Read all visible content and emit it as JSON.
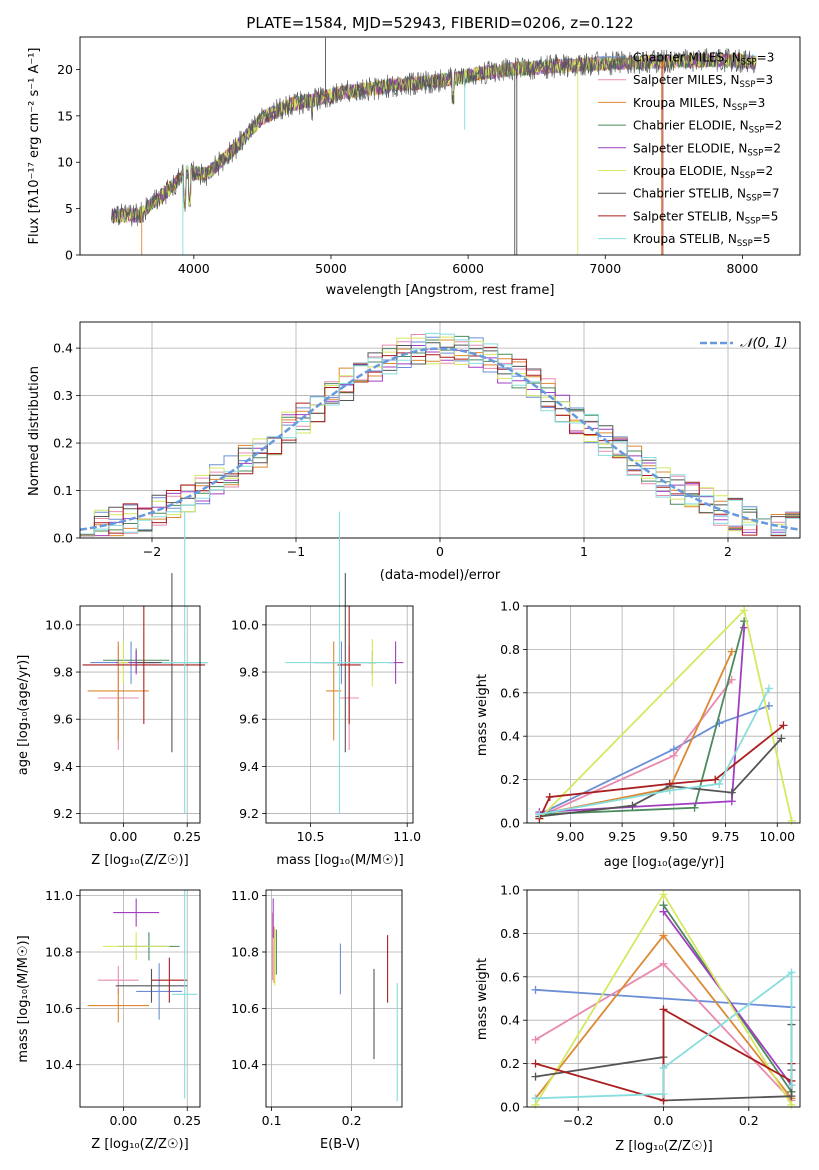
{
  "colors": {
    "chabrier_miles": "#6b8fd6",
    "salpeter_miles": "#e88ab0",
    "kroupa_miles": "#dd8833",
    "chabrier_elodie": "#4c8a5e",
    "salpeter_elodie": "#a040c0",
    "kroupa_elodie": "#d6e860",
    "chabrier_stelib": "#555555",
    "salpeter_stelib": "#aa1f1f",
    "kroupa_stelib": "#88dddd",
    "normal": "#6699dd",
    "grid": "#b0b0b0"
  },
  "chart_data": [
    {
      "type": "line",
      "title": "PLATE=1584, MJD=52943, FIBERID=0206, z=0.122",
      "xlabel": "wavelength [Angstrom, rest frame]",
      "ylabel": "Flux [fλ10⁻¹⁷ erg cm⁻² s⁻¹ A⁻¹]",
      "xlim": [
        3170,
        8420
      ],
      "ylim": [
        0,
        23.5
      ],
      "xticks": [
        "4000",
        "5000",
        "6000",
        "7000",
        "8000"
      ],
      "yticks": [
        "0",
        "5",
        "10",
        "15",
        "20"
      ],
      "grid": false,
      "legend_position": "top-right",
      "legend": [
        "Chabrier MILES, N_SSP=3",
        "Salpeter MILES, N_SSP=3",
        "Kroupa MILES, N_SSP=3",
        "Chabrier ELODIE, N_SSP=2",
        "Salpeter ELODIE, N_SSP=2",
        "Kroupa ELODIE, N_SSP=2",
        "Chabrier STELIB, N_SSP=7",
        "Salpeter STELIB, N_SSP=5",
        "Kroupa STELIB, N_SSP=5"
      ],
      "continuum": {
        "x": [
          3400,
          3600,
          3800,
          3950,
          4100,
          4300,
          4500,
          4700,
          4900,
          5100,
          5300,
          5500,
          5700,
          5900,
          6100,
          6300,
          6500,
          6700,
          6900,
          7100,
          7300,
          7500,
          7700,
          7900,
          8100
        ],
        "y": [
          4.2,
          4.3,
          6.8,
          9.0,
          8.7,
          11.5,
          14.8,
          16.2,
          16.8,
          17.6,
          17.9,
          18.4,
          18.6,
          19.0,
          19.6,
          20.0,
          20.2,
          20.4,
          20.6,
          20.7,
          20.8,
          20.9,
          21.0,
          21.0,
          20.8
        ]
      }
    },
    {
      "type": "bar",
      "xlabel": "(data-model)/error",
      "ylabel": "Normed distribution",
      "xlim": [
        -2.5,
        2.5
      ],
      "ylim": [
        0,
        0.455
      ],
      "xticks": [
        "−2",
        "−1",
        "0",
        "1",
        "2"
      ],
      "yticks": [
        "0.0",
        "0.1",
        "0.2",
        "0.3",
        "0.4"
      ],
      "grid": true,
      "legend": [
        "𝒩(0, 1)"
      ],
      "bin_width": 0.1
    },
    {
      "type": "scatter",
      "xlabel": "Z [log₁₀(Z/Z☉)]",
      "ylabel": "age  [log₁₀(age/yr)]",
      "xlim": [
        -0.17,
        0.3
      ],
      "ylim": [
        9.16,
        10.08
      ],
      "xticks": [
        "0.00",
        "0.25"
      ],
      "yticks": [
        "9.2",
        "9.4",
        "9.6",
        "9.8",
        "10.0"
      ],
      "grid": true,
      "points": [
        {
          "x": 0.03,
          "y": 9.84,
          "xerr": 0.16,
          "yerr": 0.09
        },
        {
          "x": -0.02,
          "y": 9.69,
          "xerr": 0.08,
          "yerr": 0.22
        },
        {
          "x": -0.02,
          "y": 9.72,
          "xerr": 0.12,
          "yerr": 0.21
        },
        {
          "x": 0.05,
          "y": 9.85,
          "xerr": 0.13,
          "yerr": 0.05
        },
        {
          "x": 0.05,
          "y": 9.84,
          "xerr": 0.08,
          "yerr": 0.05
        },
        {
          "x": 0.0,
          "y": 9.84,
          "xerr": 0.02,
          "yerr": 0.09
        },
        {
          "x": 0.19,
          "y": 9.84,
          "xerr": 0.14,
          "yerr": 0.38
        },
        {
          "x": 0.08,
          "y": 9.83,
          "xerr": 0.24,
          "yerr": 0.25
        },
        {
          "x": 0.24,
          "y": 9.84,
          "xerr": 0.09,
          "yerr": 0.64
        }
      ]
    },
    {
      "type": "scatter",
      "xlabel": "mass [log₁₀(M/M☉)]",
      "ylabel": "",
      "xlim": [
        10.27,
        11.03
      ],
      "ylim": [
        9.16,
        10.08
      ],
      "xticks": [
        "10.5",
        "11.0"
      ],
      "yticks": [
        "9.2",
        "9.4",
        "9.6",
        "9.8",
        "10.0"
      ],
      "grid": true,
      "points": [
        {
          "x": 10.66,
          "y": 9.84,
          "xerr": 0.1,
          "yerr": 0.09
        },
        {
          "x": 10.7,
          "y": 9.69,
          "xerr": 0.05,
          "yerr": 0.22
        },
        {
          "x": 10.62,
          "y": 9.72,
          "xerr": 0.04,
          "yerr": 0.21
        },
        {
          "x": 10.82,
          "y": 9.84,
          "xerr": 0.02,
          "yerr": 0.05
        },
        {
          "x": 10.94,
          "y": 9.84,
          "xerr": 0.04,
          "yerr": 0.09
        },
        {
          "x": 10.82,
          "y": 9.84,
          "xerr": 0.02,
          "yerr": 0.1
        },
        {
          "x": 10.68,
          "y": 9.84,
          "xerr": 0.16,
          "yerr": 0.38
        },
        {
          "x": 10.7,
          "y": 9.83,
          "xerr": 0.06,
          "yerr": 0.25
        },
        {
          "x": 10.65,
          "y": 9.84,
          "xerr": 0.28,
          "yerr": 0.64
        }
      ]
    },
    {
      "type": "line",
      "xlabel": "age  [log₁₀(age/yr)]",
      "ylabel": "mass weight",
      "xlim": [
        8.79,
        10.11
      ],
      "ylim": [
        0,
        1.0
      ],
      "xticks": [
        "9.00",
        "9.25",
        "9.50",
        "9.75",
        "10.00"
      ],
      "yticks": [
        "0.0",
        "0.2",
        "0.4",
        "0.6",
        "0.8",
        "1.0"
      ],
      "grid": true,
      "series": [
        {
          "x": [
            8.85,
            9.5,
            9.72,
            9.96
          ],
          "y": [
            0.04,
            0.34,
            0.46,
            0.54
          ]
        },
        {
          "x": [
            8.85,
            9.5,
            9.78
          ],
          "y": [
            0.03,
            0.31,
            0.66
          ]
        },
        {
          "x": [
            8.85,
            9.48,
            9.78
          ],
          "y": [
            0.04,
            0.16,
            0.79
          ]
        },
        {
          "x": [
            8.85,
            9.6,
            9.84
          ],
          "y": [
            0.04,
            0.07,
            0.93
          ]
        },
        {
          "x": [
            8.85,
            9.78,
            9.84
          ],
          "y": [
            0.05,
            0.1,
            0.9
          ]
        },
        {
          "x": [
            8.85,
            9.84,
            10.07
          ],
          "y": [
            0.02,
            0.98,
            0.01
          ]
        },
        {
          "x": [
            8.85,
            9.3,
            9.48,
            9.78,
            10.02
          ],
          "y": [
            0.03,
            0.08,
            0.17,
            0.14,
            0.39
          ]
        },
        {
          "x": [
            8.85,
            8.9,
            9.48,
            9.7,
            10.03
          ],
          "y": [
            0.02,
            0.12,
            0.18,
            0.2,
            0.45
          ]
        },
        {
          "x": [
            8.85,
            9.48,
            9.72,
            9.96
          ],
          "y": [
            0.04,
            0.15,
            0.18,
            0.62
          ]
        }
      ]
    },
    {
      "type": "scatter",
      "xlabel": "Z [log₁₀(Z/Z☉)]",
      "ylabel": "mass [log₁₀(M/M☉)]",
      "xlim": [
        -0.17,
        0.3
      ],
      "ylim": [
        10.25,
        11.02
      ],
      "xticks": [
        "0.00",
        "0.25"
      ],
      "yticks": [
        "10.4",
        "10.6",
        "10.8",
        "11.0"
      ],
      "grid": true,
      "points": [
        {
          "x": 0.14,
          "y": 10.66,
          "xerr": 0.09,
          "yerr": 0.1
        },
        {
          "x": -0.02,
          "y": 10.7,
          "xerr": 0.08,
          "yerr": 0.05
        },
        {
          "x": -0.02,
          "y": 10.61,
          "xerr": 0.12,
          "yerr": 0.06
        },
        {
          "x": 0.1,
          "y": 10.82,
          "xerr": 0.12,
          "yerr": 0.05
        },
        {
          "x": 0.05,
          "y": 10.94,
          "xerr": 0.09,
          "yerr": 0.05
        },
        {
          "x": 0.05,
          "y": 10.82,
          "xerr": 0.13,
          "yerr": 0.05
        },
        {
          "x": 0.11,
          "y": 10.68,
          "xerr": 0.14,
          "yerr": 0.06
        },
        {
          "x": 0.18,
          "y": 10.7,
          "xerr": 0.07,
          "yerr": 0.08
        },
        {
          "x": 0.24,
          "y": 10.65,
          "xerr": 0.05,
          "yerr": 0.37
        }
      ]
    },
    {
      "type": "scatter",
      "xlabel": "E(B-V)",
      "ylabel": "",
      "xlim": [
        0.093,
        0.263
      ],
      "ylim": [
        10.25,
        11.02
      ],
      "xticks": [
        "0.1",
        "0.2"
      ],
      "yticks": [
        "10.4",
        "10.6",
        "10.8",
        "11.0"
      ],
      "grid": true,
      "points": [
        {
          "x": 0.186,
          "y": 10.74,
          "yerr": 0.09
        },
        {
          "x": 0.101,
          "y": 10.82,
          "yerr": 0.12
        },
        {
          "x": 0.103,
          "y": 10.79,
          "yerr": 0.1
        },
        {
          "x": 0.106,
          "y": 10.8,
          "yerr": 0.08
        },
        {
          "x": 0.102,
          "y": 10.92,
          "yerr": 0.07
        },
        {
          "x": 0.104,
          "y": 10.78,
          "yerr": 0.1
        },
        {
          "x": 0.228,
          "y": 10.58,
          "yerr": 0.16
        },
        {
          "x": 0.245,
          "y": 10.74,
          "yerr": 0.12
        },
        {
          "x": 0.257,
          "y": 10.48,
          "yerr": 0.21
        }
      ]
    },
    {
      "type": "line",
      "xlabel": "Z [log₁₀(Z/Z☉)]",
      "ylabel": "mass weight",
      "xlim": [
        -0.32,
        0.32
      ],
      "ylim": [
        0,
        1.0
      ],
      "xticks": [
        "−0.2",
        "0.0",
        "0.2"
      ],
      "yticks": [
        "0.0",
        "0.2",
        "0.4",
        "0.6",
        "0.8",
        "1.0"
      ],
      "grid": true,
      "series": [
        {
          "x": [
            -0.3,
            0.3
          ],
          "y": [
            0.54,
            0.46
          ]
        },
        {
          "x": [
            -0.3,
            0.0,
            0.3
          ],
          "y": [
            0.31,
            0.66,
            0.03
          ]
        },
        {
          "x": [
            -0.3,
            0.0,
            0.3
          ],
          "y": [
            0.04,
            0.79,
            0.04
          ]
        },
        {
          "x": [
            0.0,
            0.3
          ],
          "y": [
            0.93,
            0.07
          ]
        },
        {
          "x": [
            0.0,
            0.3
          ],
          "y": [
            0.9,
            0.1
          ]
        },
        {
          "x": [
            -0.3,
            0.0,
            0.3
          ],
          "y": [
            0.01,
            0.98,
            0.01
          ]
        },
        {
          "x": [
            -0.3,
            0.0,
            0.0,
            0.3,
            0.3,
            0.3
          ],
          "y": [
            0.14,
            0.23,
            0.03,
            0.05,
            0.38,
            0.17
          ]
        },
        {
          "x": [
            -0.3,
            0.0,
            0.0,
            0.3,
            0.3
          ],
          "y": [
            0.2,
            0.03,
            0.45,
            0.12,
            0.2
          ]
        },
        {
          "x": [
            -0.3,
            0.0,
            0.0,
            0.3,
            0.3
          ],
          "y": [
            0.04,
            0.06,
            0.18,
            0.62,
            0.1
          ]
        }
      ]
    }
  ]
}
